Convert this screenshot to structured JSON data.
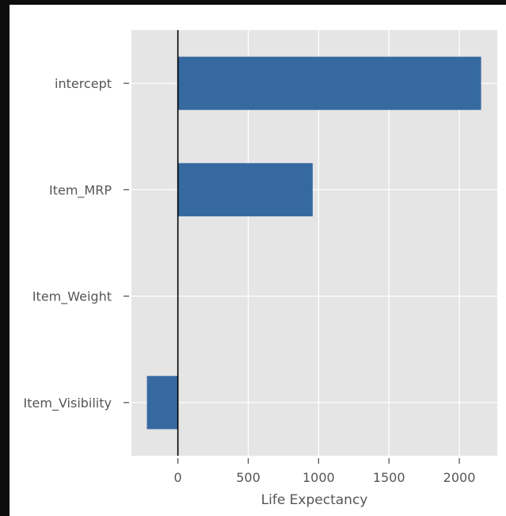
{
  "chart_data": {
    "type": "bar",
    "orientation": "horizontal",
    "categories": [
      "intercept",
      "Item_MRP",
      "Item_Weight",
      "Item_Visibility"
    ],
    "values": [
      2155,
      958,
      0,
      -220
    ],
    "xlabel": "Life Expectancy",
    "ylabel": "",
    "xlim": [
      -330,
      2270
    ],
    "xticks": [
      0,
      500,
      1000,
      1500,
      2000
    ],
    "xtick_labels": [
      "0",
      "500",
      "1000",
      "1500",
      "2000"
    ],
    "grid": true,
    "zero_line": true,
    "colors": {
      "bar": "#3669a0",
      "plot_background": "#e5e5e5",
      "grid": "#ffffff",
      "zero_line": "#000000",
      "text": "#555555"
    }
  }
}
